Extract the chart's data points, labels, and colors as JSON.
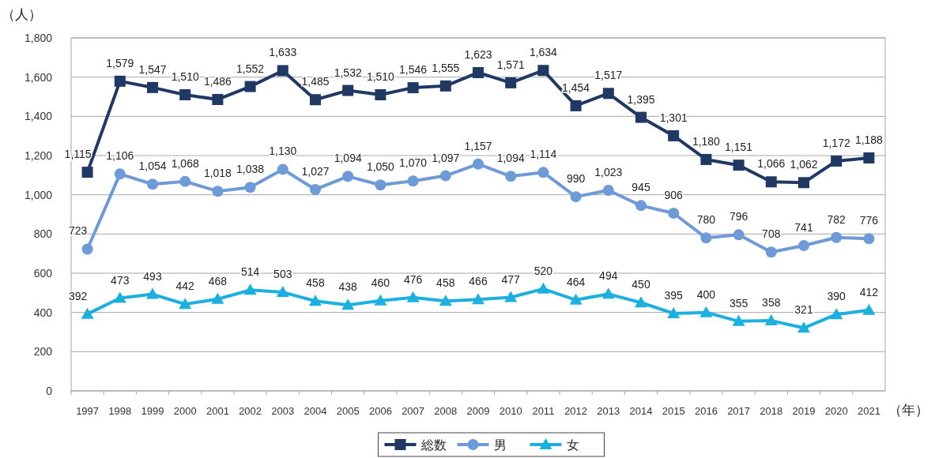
{
  "chart_data": {
    "type": "line",
    "ylabel": "（人）",
    "xlabel": "（年）",
    "categories": [
      "1997",
      "1998",
      "1999",
      "2000",
      "2001",
      "2002",
      "2003",
      "2004",
      "2005",
      "2006",
      "2007",
      "2008",
      "2009",
      "2010",
      "2011",
      "2012",
      "2013",
      "2014",
      "2015",
      "2016",
      "2017",
      "2018",
      "2019",
      "2020",
      "2021"
    ],
    "ylim": [
      0,
      1800
    ],
    "yticks": [
      0,
      200,
      400,
      600,
      800,
      {
        "value": 1000,
        "label": "1,000"
      },
      {
        "value": 1200,
        "label": "1,200"
      },
      {
        "value": 1400,
        "label": "1,400"
      },
      {
        "value": 1600,
        "label": "1,600"
      },
      {
        "value": 1800,
        "label": "1,800"
      }
    ],
    "grid": "y",
    "legend": "bottom",
    "line_style": "solid",
    "series": [
      {
        "name": "総数",
        "color": "#203864",
        "marker": "square",
        "values": [
          1115,
          1579,
          1547,
          1510,
          1486,
          1552,
          1633,
          1485,
          1532,
          1510,
          1546,
          1555,
          1623,
          1571,
          1634,
          1454,
          1517,
          1395,
          1301,
          1180,
          1151,
          1066,
          1062,
          1172,
          1188
        ],
        "value_labels": [
          "1,115",
          "1,579",
          "1,547",
          "1,510",
          "1,486",
          "1,552",
          "1,633",
          "1,485",
          "1,532",
          "1,510",
          "1,546",
          "1,555",
          "1,623",
          "1,571",
          "1,634",
          "1,454",
          "1,517",
          "1,395",
          "1,301",
          "1,180",
          "1,151",
          "1,066",
          "1,062",
          "1,172",
          "1,188"
        ]
      },
      {
        "name": "男",
        "color": "#6f9ad8",
        "marker": "circle",
        "values": [
          723,
          1106,
          1054,
          1068,
          1018,
          1038,
          1130,
          1027,
          1094,
          1050,
          1070,
          1097,
          1157,
          1094,
          1114,
          990,
          1023,
          945,
          906,
          780,
          796,
          708,
          741,
          782,
          776
        ],
        "value_labels": [
          "723",
          "1,106",
          "1,054",
          "1,068",
          "1,018",
          "1,038",
          "1,130",
          "1,027",
          "1,094",
          "1,050",
          "1,070",
          "1,097",
          "1,157",
          "1,094",
          "1,114",
          "990",
          "1,023",
          "945",
          "906",
          "780",
          "796",
          "708",
          "741",
          "782",
          "776"
        ]
      },
      {
        "name": "女",
        "color": "#1cb0e0",
        "marker": "triangle",
        "values": [
          392,
          473,
          493,
          442,
          468,
          514,
          503,
          458,
          438,
          460,
          476,
          458,
          466,
          477,
          520,
          464,
          494,
          450,
          395,
          400,
          355,
          358,
          321,
          390,
          412
        ],
        "value_labels": [
          "392",
          "473",
          "493",
          "442",
          "468",
          "514",
          "503",
          "458",
          "438",
          "460",
          "476",
          "458",
          "466",
          "477",
          "520",
          "464",
          "494",
          "450",
          "395",
          "400",
          "355",
          "358",
          "321",
          "390",
          "412"
        ]
      }
    ]
  }
}
